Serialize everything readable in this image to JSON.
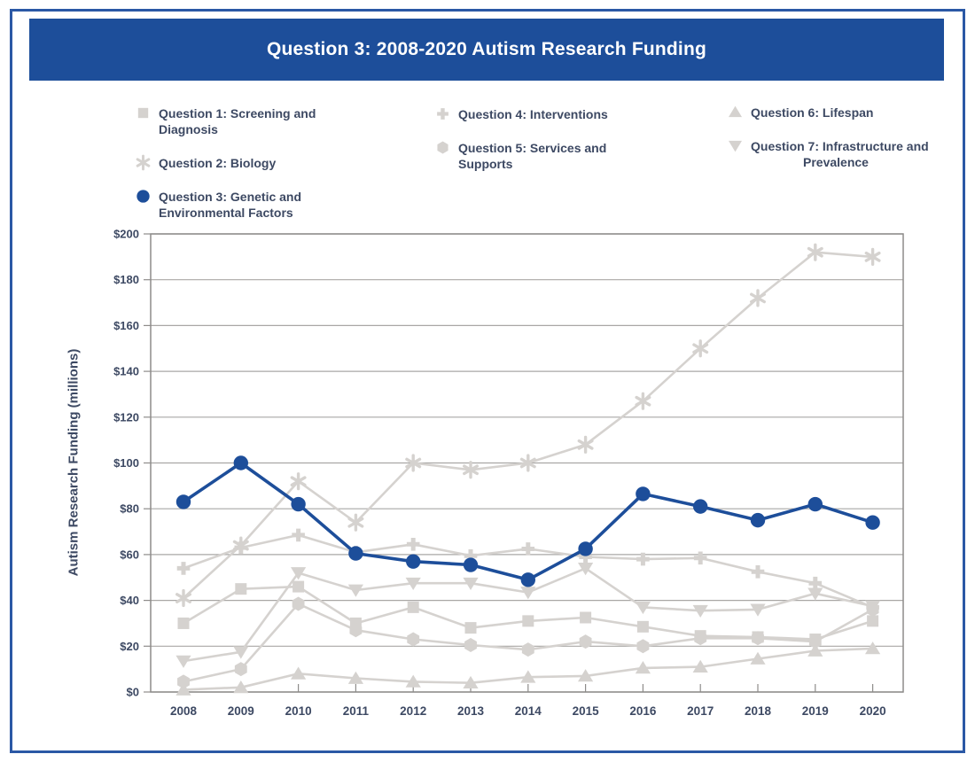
{
  "page": {
    "title": "Question 3: 2008-2020 Autism Research Funding"
  },
  "theme": {
    "banner_bg": "#1d4e9a",
    "banner_text": "#ffffff",
    "page_border": "#2b58a5",
    "text": "#3d4963",
    "grid": "#a9a7a5",
    "axis": "#8e8c8a",
    "accent": "#1d4e9a",
    "muted": "#d5d2cf"
  },
  "legend": {
    "items": [
      {
        "label": "Question 1: Screening and Diagnosis",
        "marker": "square",
        "tone": "muted"
      },
      {
        "label": "Question 2: Biology",
        "marker": "asterisk",
        "tone": "muted"
      },
      {
        "label": "Question 3: Genetic and Environmental Factors",
        "marker": "circle",
        "tone": "accent"
      },
      {
        "label": "Question 4: Interventions",
        "marker": "plus",
        "tone": "muted"
      },
      {
        "label": "Question 5: Services and Supports",
        "marker": "hexagon",
        "tone": "muted"
      },
      {
        "label": "Question 6: Lifespan",
        "marker": "triangle-up",
        "tone": "muted"
      },
      {
        "label": "Question 7: Infrastructure and Prevalence",
        "marker": "triangle-down",
        "tone": "muted"
      }
    ]
  },
  "chart_data": {
    "type": "line",
    "title": "Question 3: 2008-2020 Autism Research Funding",
    "xlabel": "",
    "ylabel": "Autism Research Funding (millions)",
    "x": [
      2008,
      2009,
      2010,
      2011,
      2012,
      2013,
      2014,
      2015,
      2016,
      2017,
      2018,
      2019,
      2020
    ],
    "ylim": [
      0,
      200
    ],
    "ytick_step": 20,
    "ytick_prefix": "$",
    "grid": true,
    "legend_position": "top",
    "series": [
      {
        "name": "Question 1: Screening and Diagnosis",
        "marker": "square",
        "tone": "muted",
        "values": [
          30,
          45,
          46,
          30,
          37,
          28,
          31,
          32.5,
          28.5,
          24.5,
          24,
          23,
          31
        ]
      },
      {
        "name": "Question 2: Biology",
        "marker": "asterisk",
        "tone": "muted",
        "values": [
          41,
          64,
          92,
          74,
          100,
          97,
          100,
          108,
          127,
          150,
          172,
          192,
          190
        ]
      },
      {
        "name": "Question 3: Genetic and Environmental Factors",
        "marker": "circle",
        "tone": "accent",
        "emphasis": true,
        "values": [
          83,
          100,
          82,
          60.5,
          57,
          55.5,
          49,
          62.5,
          86.5,
          81,
          75,
          82,
          74
        ]
      },
      {
        "name": "Question 4: Interventions",
        "marker": "plus",
        "tone": "muted",
        "values": [
          54,
          63,
          68.5,
          61,
          64.5,
          59.5,
          62.5,
          59,
          58,
          58.5,
          52.5,
          47.5,
          37
        ]
      },
      {
        "name": "Question 5: Services and Supports",
        "marker": "hexagon",
        "tone": "muted",
        "values": [
          4.5,
          10,
          38.5,
          27,
          23,
          20.5,
          18.5,
          22,
          20,
          23.5,
          23.5,
          22,
          36
        ]
      },
      {
        "name": "Question 6: Lifespan",
        "marker": "triangle-up",
        "tone": "muted",
        "values": [
          1,
          2,
          8,
          6,
          4.5,
          4,
          6.5,
          7,
          10.5,
          11,
          14.5,
          18,
          19
        ]
      },
      {
        "name": "Question 7: Infrastructure and Prevalence",
        "marker": "triangle-down",
        "tone": "muted",
        "values": [
          13.5,
          17.5,
          52,
          44.5,
          47.5,
          47.5,
          43.5,
          54,
          37,
          35.5,
          36,
          43,
          37.5
        ]
      }
    ]
  }
}
